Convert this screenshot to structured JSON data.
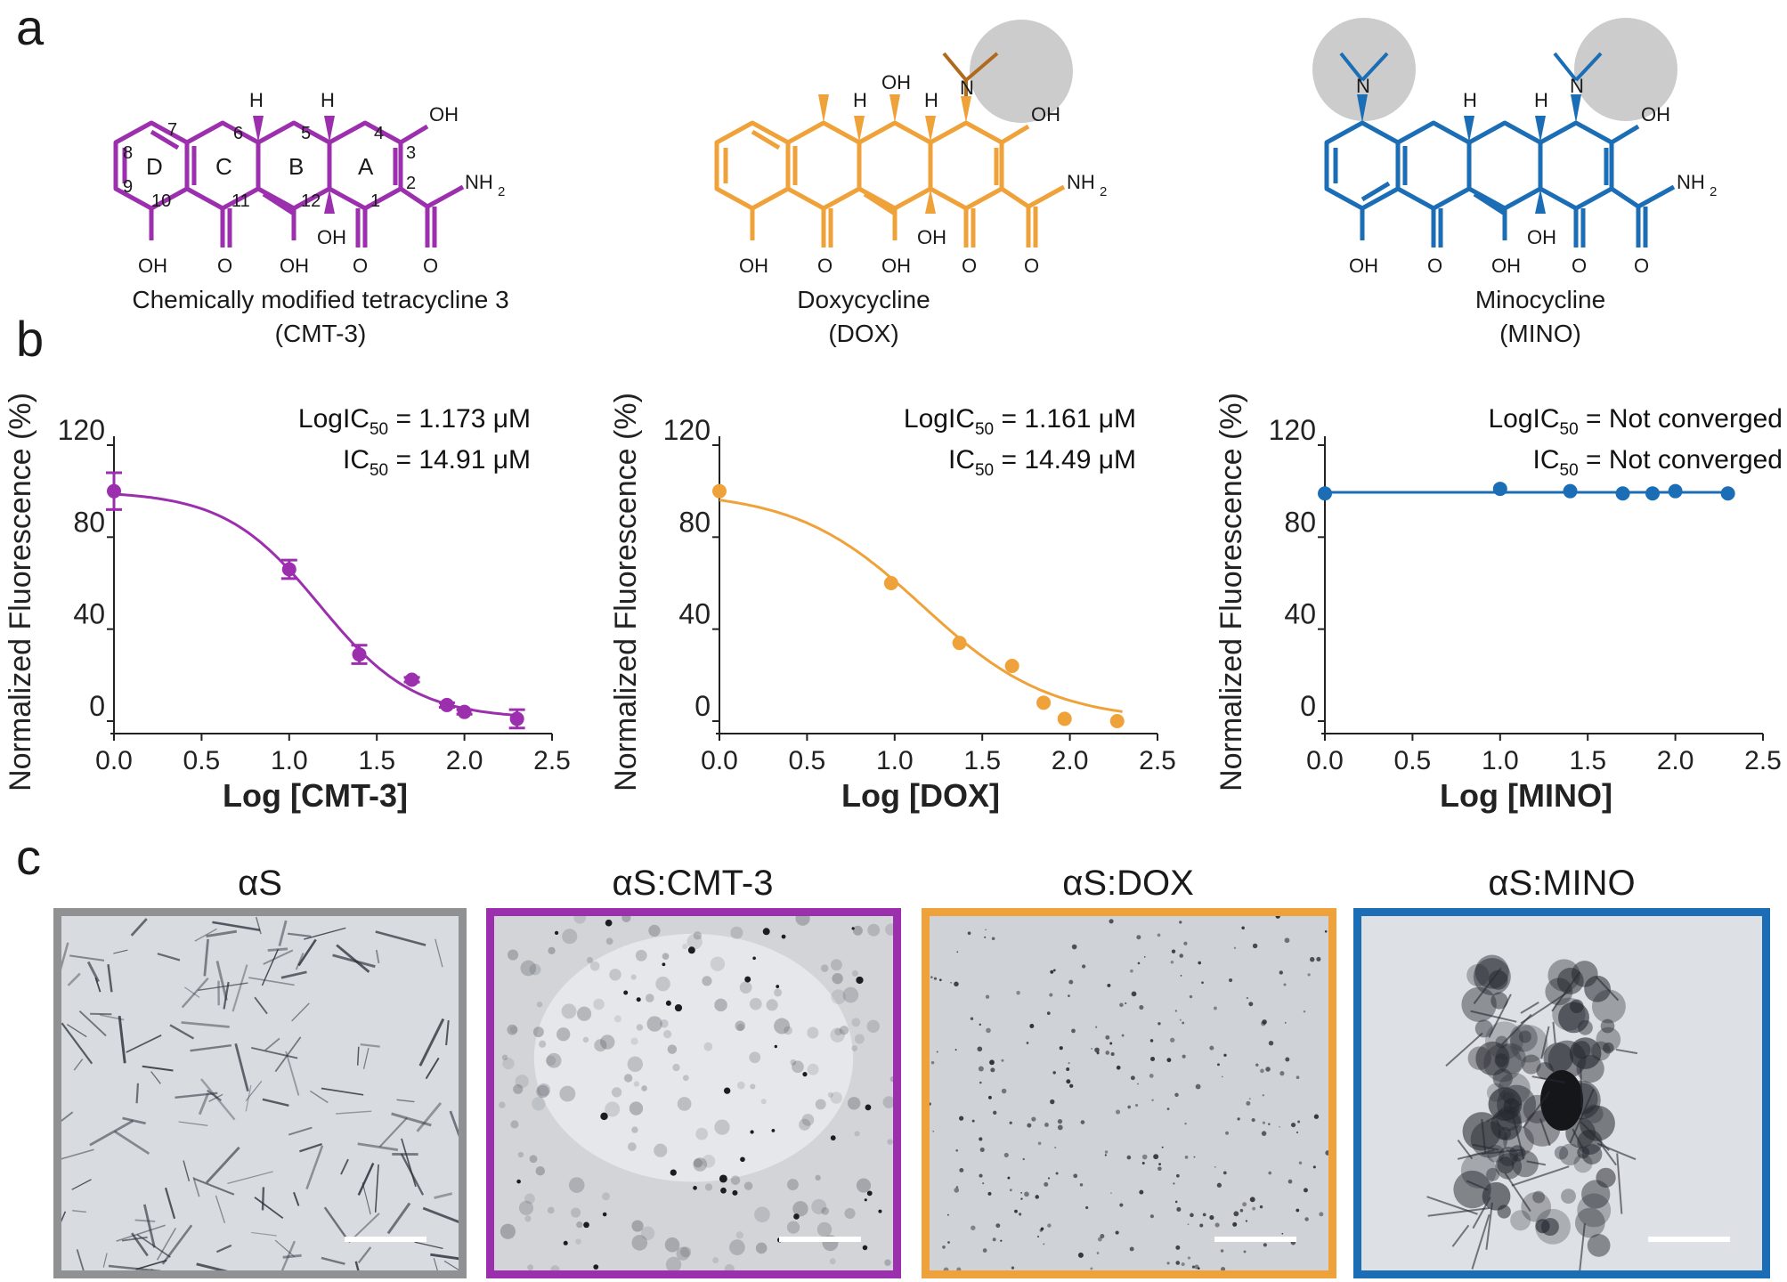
{
  "panel_labels": {
    "a": "a",
    "b": "b",
    "c": "c"
  },
  "colors": {
    "cmt3": "#9b2fae",
    "dox": "#f0a23a",
    "mino": "#1b6db5",
    "gray_frame": "#8f9192",
    "highlight": "#cccccc"
  },
  "molecules": [
    {
      "key": "cmt3",
      "name": "Chemically modified tetracycline 3",
      "abbr": "(CMT-3)",
      "ring_labels": [
        "A",
        "B",
        "C",
        "D"
      ],
      "atom_numbers": [
        "1",
        "2",
        "3",
        "4",
        "5",
        "6",
        "7",
        "8",
        "9",
        "10",
        "11",
        "12"
      ],
      "groups": {
        "oh": "OH",
        "nh2": "NH",
        "nh2_sub": "2",
        "o": "O",
        "h": "H"
      }
    },
    {
      "key": "dox",
      "name": "Doxycycline",
      "abbr": "(DOX)",
      "groups": {
        "oh": "OH",
        "nh2": "NH",
        "nh2_sub": "2",
        "o": "O",
        "h": "H",
        "n": "N"
      }
    },
    {
      "key": "mino",
      "name": "Minocycline",
      "abbr": "(MINO)",
      "groups": {
        "oh": "OH",
        "nh2": "NH",
        "nh2_sub": "2",
        "o": "O",
        "h": "H",
        "n": "N"
      }
    }
  ],
  "chart_data": [
    {
      "type": "scatter",
      "color": "#9b2fae",
      "xlabel": "Log [CMT-3]",
      "ylabel": "Normalized Fluorescence (%)",
      "xlim": [
        0.0,
        2.5
      ],
      "ylim": [
        0,
        120
      ],
      "xticks": [
        "0.0",
        "0.5",
        "1.0",
        "1.5",
        "2.0",
        "2.5"
      ],
      "yticks": [
        "0",
        "40",
        "80",
        "120"
      ],
      "annotation": {
        "line1_pre": "LogIC",
        "line1_sub": "50",
        "line1_post": " = 1.173 μM",
        "line2_pre": "IC",
        "line2_sub": "50",
        "line2_post": " = 14.91 μM"
      },
      "points": [
        {
          "x": 0.0,
          "y": 100,
          "err": 8
        },
        {
          "x": 1.0,
          "y": 66,
          "err": 4
        },
        {
          "x": 1.4,
          "y": 29,
          "err": 4
        },
        {
          "x": 1.7,
          "y": 18,
          "err": 1
        },
        {
          "x": 1.9,
          "y": 7,
          "err": 1
        },
        {
          "x": 2.0,
          "y": 4,
          "err": 1
        },
        {
          "x": 2.3,
          "y": 1,
          "err": 4
        }
      ],
      "fit": {
        "top": 100,
        "bottom": 1,
        "logic50": 1.173,
        "hill": 1.6
      }
    },
    {
      "type": "scatter",
      "color": "#f0a23a",
      "xlabel": "Log [DOX]",
      "ylabel": "Normalized Fluorescence (%)",
      "xlim": [
        0.0,
        2.5
      ],
      "ylim": [
        0,
        120
      ],
      "xticks": [
        "0.0",
        "0.5",
        "1.0",
        "1.5",
        "2.0",
        "2.5"
      ],
      "yticks": [
        "0",
        "40",
        "80",
        "120"
      ],
      "annotation": {
        "line1_pre": "LogIC",
        "line1_sub": "50",
        "line1_post": " = 1.161 μM",
        "line2_pre": "IC",
        "line2_sub": "50",
        "line2_post": " = 14.49 μM"
      },
      "points": [
        {
          "x": 0.0,
          "y": 100
        },
        {
          "x": 0.98,
          "y": 60
        },
        {
          "x": 1.37,
          "y": 34
        },
        {
          "x": 1.67,
          "y": 24
        },
        {
          "x": 1.85,
          "y": 8
        },
        {
          "x": 1.97,
          "y": 1
        },
        {
          "x": 2.27,
          "y": 0
        }
      ],
      "fit": {
        "top": 100,
        "bottom": 0,
        "logic50": 1.161,
        "hill": 1.2
      }
    },
    {
      "type": "scatter",
      "color": "#1b6db5",
      "xlabel": "Log [MINO]",
      "ylabel": "Normalized Fluorescence (%)",
      "xlim": [
        0.0,
        2.5
      ],
      "ylim": [
        0,
        120
      ],
      "xticks": [
        "0.0",
        "0.5",
        "1.0",
        "1.5",
        "2.0",
        "2.5"
      ],
      "yticks": [
        "0",
        "40",
        "80",
        "120"
      ],
      "annotation": {
        "line1_pre": "LogIC",
        "line1_sub": "50",
        "line1_post": " = Not converged",
        "line2_pre": "IC",
        "line2_sub": "50",
        "line2_post": " = Not converged"
      },
      "points": [
        {
          "x": 0.0,
          "y": 99
        },
        {
          "x": 1.0,
          "y": 101
        },
        {
          "x": 1.4,
          "y": 100
        },
        {
          "x": 1.7,
          "y": 99
        },
        {
          "x": 1.87,
          "y": 99
        },
        {
          "x": 2.0,
          "y": 100
        },
        {
          "x": 2.3,
          "y": 99
        }
      ],
      "fit": {
        "flat": 99.5
      }
    }
  ],
  "tem": [
    {
      "title": "αS",
      "color": "#8f9192",
      "texture": "fibrils"
    },
    {
      "title": "αS:CMT-3",
      "color": "#9b2fae",
      "texture": "dots"
    },
    {
      "title": "αS:DOX",
      "color": "#f0a23a",
      "texture": "specks"
    },
    {
      "title": "αS:MINO",
      "color": "#1b6db5",
      "texture": "aggregate"
    }
  ]
}
